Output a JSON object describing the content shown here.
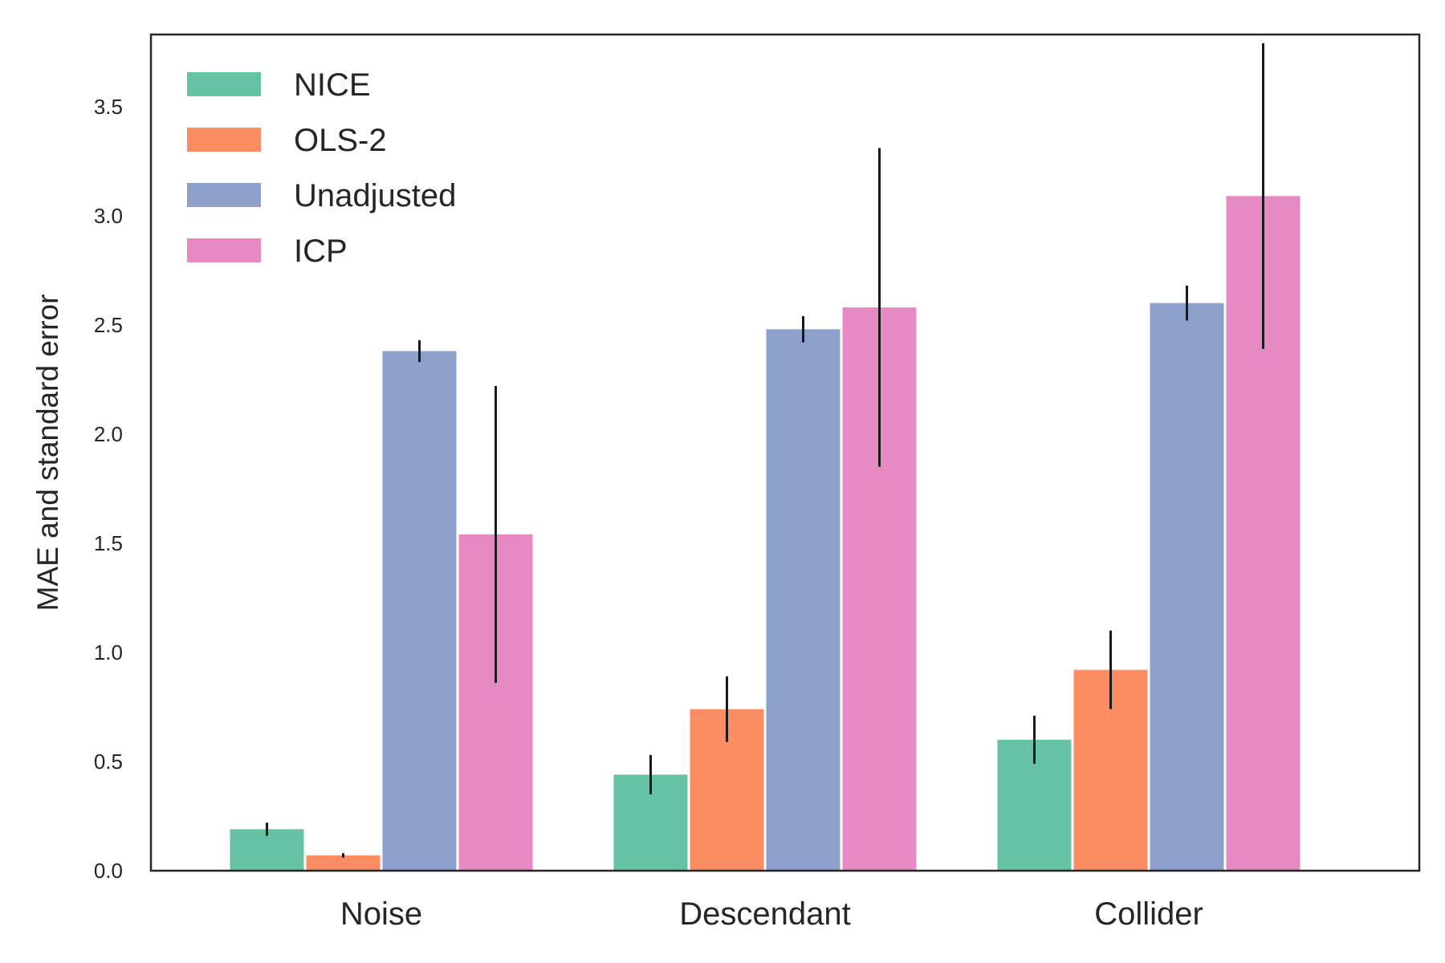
{
  "chart_data": {
    "type": "bar",
    "ylabel": "MAE and standard error",
    "xlabel": "",
    "ylim": [
      0,
      3.83
    ],
    "yticks": [
      "0.0",
      "0.5",
      "1.0",
      "1.5",
      "2.0",
      "2.5",
      "3.0",
      "3.5"
    ],
    "categories": [
      "Noise",
      "Descendant",
      "Collider"
    ],
    "legend_position": "top-left",
    "grid": false,
    "series": [
      {
        "name": "NICE",
        "color": "#66c2a5",
        "values": [
          0.19,
          0.44,
          0.6
        ],
        "errors": [
          0.03,
          0.09,
          0.11
        ]
      },
      {
        "name": "OLS-2",
        "color": "#fc8d62",
        "values": [
          0.07,
          0.74,
          0.92
        ],
        "errors": [
          0.01,
          0.15,
          0.18
        ]
      },
      {
        "name": "Unadjusted",
        "color": "#8da0cb",
        "values": [
          2.38,
          2.48,
          2.6
        ],
        "errors": [
          0.05,
          0.06,
          0.08
        ]
      },
      {
        "name": "ICP",
        "color": "#e78ac3",
        "values": [
          1.54,
          2.58,
          3.09
        ],
        "errors": [
          0.68,
          0.73,
          0.7
        ]
      }
    ]
  }
}
